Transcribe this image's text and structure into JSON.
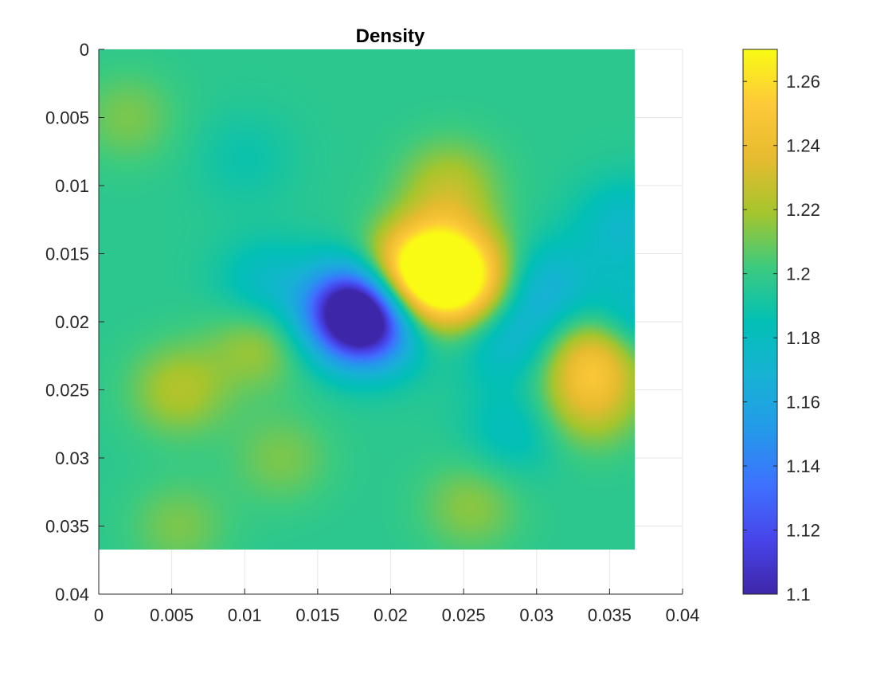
{
  "chart_data": {
    "type": "heatmap",
    "title": "Density",
    "xlabel": "",
    "ylabel": "",
    "xlim": [
      0,
      0.04
    ],
    "ylim": [
      0,
      0.04
    ],
    "y_reversed": true,
    "grid": true,
    "data_extent": {
      "x": [
        0,
        0.0367
      ],
      "y": [
        0,
        0.0367
      ]
    },
    "x_ticks": [
      "0",
      "0.005",
      "0.01",
      "0.015",
      "0.02",
      "0.025",
      "0.03",
      "0.035",
      "0.04"
    ],
    "y_ticks": [
      "0",
      "0.005",
      "0.01",
      "0.015",
      "0.02",
      "0.025",
      "0.03",
      "0.035",
      "0.04"
    ],
    "x_tick_values": [
      0,
      0.005,
      0.01,
      0.015,
      0.02,
      0.025,
      0.03,
      0.035,
      0.04
    ],
    "y_tick_values": [
      0,
      0.005,
      0.01,
      0.015,
      0.02,
      0.025,
      0.03,
      0.035,
      0.04
    ],
    "colorbar": {
      "colormap": "parula",
      "range": [
        1.1,
        1.27
      ],
      "ticks": [
        "1.1",
        "1.12",
        "1.14",
        "1.16",
        "1.18",
        "1.2",
        "1.22",
        "1.24",
        "1.26"
      ],
      "tick_values": [
        1.1,
        1.12,
        1.14,
        1.16,
        1.18,
        1.2,
        1.22,
        1.24,
        1.26
      ],
      "placement": "right"
    },
    "background_value": 1.197,
    "features": [
      {
        "x": 0.0252,
        "y": 0.0172,
        "value": 1.262
      },
      {
        "x": 0.0235,
        "y": 0.015,
        "value": 1.235
      },
      {
        "x": 0.0213,
        "y": 0.0165,
        "value": 1.245
      },
      {
        "x": 0.0207,
        "y": 0.0182,
        "value": 1.247
      },
      {
        "x": 0.024,
        "y": 0.01,
        "value": 1.222
      },
      {
        "x": 0.034,
        "y": 0.0225,
        "value": 1.243
      },
      {
        "x": 0.0335,
        "y": 0.026,
        "value": 1.225
      },
      {
        "x": 0.0182,
        "y": 0.0192,
        "value": 1.1
      },
      {
        "x": 0.017,
        "y": 0.0195,
        "value": 1.15
      },
      {
        "x": 0.0195,
        "y": 0.02,
        "value": 1.16
      },
      {
        "x": 0.0115,
        "y": 0.0175,
        "value": 1.175
      },
      {
        "x": 0.028,
        "y": 0.021,
        "value": 1.17
      },
      {
        "x": 0.0305,
        "y": 0.0175,
        "value": 1.168
      },
      {
        "x": 0.0365,
        "y": 0.02,
        "value": 1.17
      },
      {
        "x": 0.036,
        "y": 0.013,
        "value": 1.175
      },
      {
        "x": 0.0055,
        "y": 0.025,
        "value": 1.222
      },
      {
        "x": 0.011,
        "y": 0.0215,
        "value": 1.22
      },
      {
        "x": 0.0125,
        "y": 0.03,
        "value": 1.212
      },
      {
        "x": 0.0055,
        "y": 0.035,
        "value": 1.212
      },
      {
        "x": 0.0255,
        "y": 0.0335,
        "value": 1.215
      },
      {
        "x": 0.01,
        "y": 0.008,
        "value": 1.188
      },
      {
        "x": 0.0285,
        "y": 0.028,
        "value": 1.18
      },
      {
        "x": 0.002,
        "y": 0.005,
        "value": 1.212
      }
    ]
  }
}
